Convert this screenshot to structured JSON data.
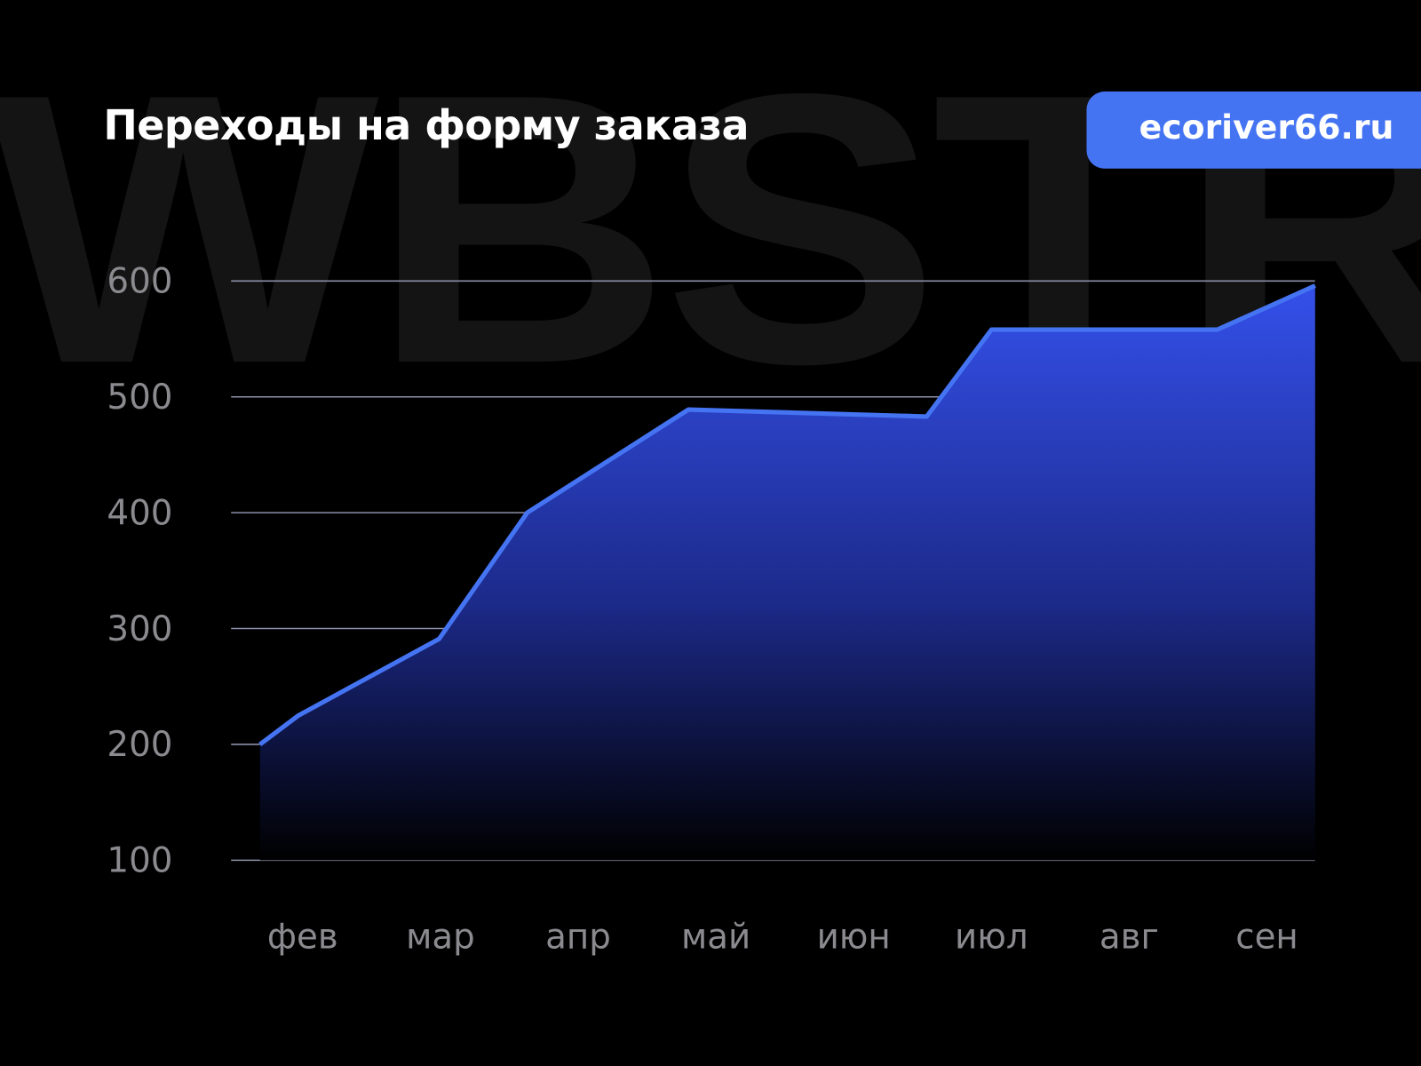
{
  "watermark": "WBSTR",
  "badge": {
    "label": "ecoriver66.ru",
    "color": "#4574f3"
  },
  "chart_data": {
    "type": "area",
    "title": "Переходы на форму заказа",
    "xlabel": "",
    "ylabel": "",
    "categories": [
      "фев",
      "мар",
      "апр",
      "май",
      "июн",
      "июл",
      "авг",
      "сен"
    ],
    "yticks": [
      100,
      200,
      300,
      400,
      500,
      600
    ],
    "ylim": [
      100,
      600
    ],
    "grid": true,
    "line_color": "#4574f3",
    "series": [
      {
        "points": [
          {
            "x": -0.31,
            "y": 200
          },
          {
            "x": -0.03,
            "y": 225
          },
          {
            "x": 0.99,
            "y": 291
          },
          {
            "x": 1.63,
            "y": 400
          },
          {
            "x": 2.8,
            "y": 489
          },
          {
            "x": 4.53,
            "y": 483
          },
          {
            "x": 5.0,
            "y": 558
          },
          {
            "x": 6.64,
            "y": 558
          },
          {
            "x": 7.35,
            "y": 596
          }
        ]
      }
    ]
  }
}
